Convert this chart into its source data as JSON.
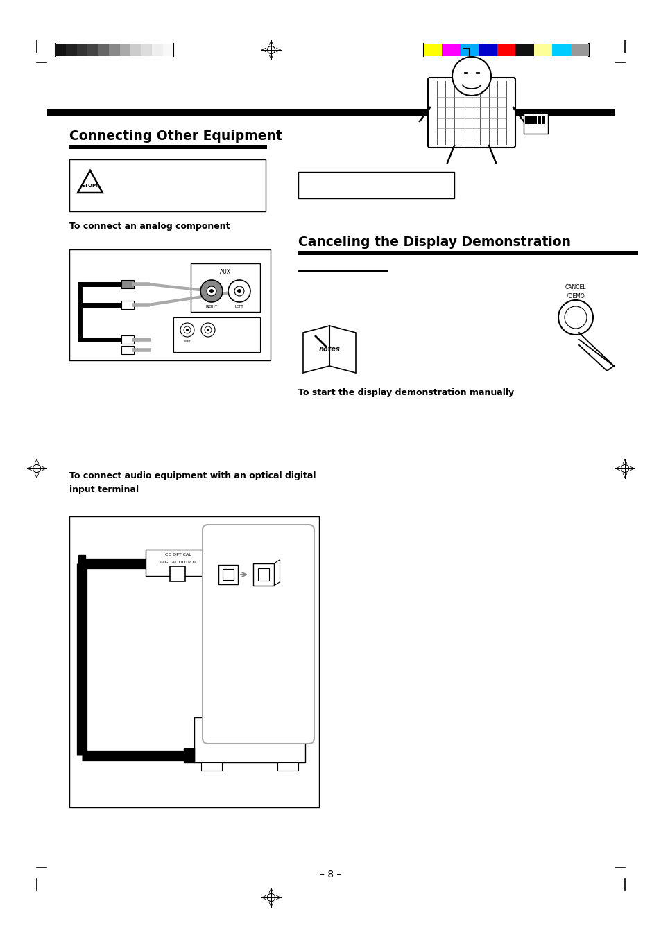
{
  "bg_color": "#ffffff",
  "page_width": 9.54,
  "page_height": 13.52,
  "grayscale_bars": [
    "#111111",
    "#222222",
    "#333333",
    "#444444",
    "#666666",
    "#888888",
    "#aaaaaa",
    "#cccccc",
    "#dddddd",
    "#eeeeee",
    "#f8f8f8"
  ],
  "color_bars": [
    "#ffff00",
    "#ff00ff",
    "#00aaff",
    "#0000cc",
    "#ff0000",
    "#111111",
    "#ffff99",
    "#00ccff",
    "#999999"
  ],
  "section1_title": "Connecting Other Equipment",
  "section2_title": "Canceling the Display Demonstration",
  "analog_label": "To connect an analog component",
  "demo_label": "To start the display demonstration manually",
  "optical_label1": "To connect audio equipment with an optical digital",
  "optical_label2": "input terminal",
  "page_number": "– 8 –"
}
